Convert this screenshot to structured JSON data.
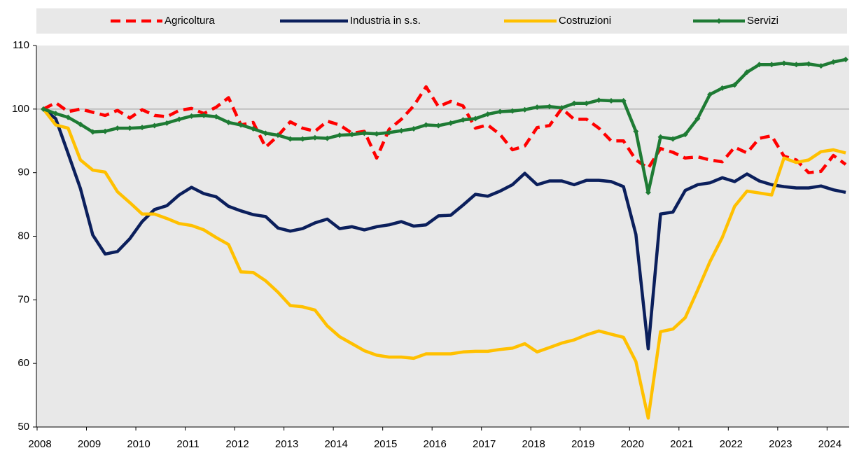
{
  "chart_data": {
    "type": "line",
    "categories": [
      "2008",
      null,
      null,
      null,
      "2009",
      null,
      null,
      null,
      "2010",
      null,
      null,
      null,
      "2011",
      null,
      null,
      null,
      "2012",
      null,
      null,
      null,
      "2013",
      null,
      null,
      null,
      "2014",
      null,
      null,
      null,
      "2015",
      null,
      null,
      null,
      "2016",
      null,
      null,
      null,
      "2017",
      null,
      null,
      null,
      "2018",
      null,
      null,
      null,
      "2019",
      null,
      null,
      null,
      "2020",
      null,
      null,
      null,
      "2021",
      null,
      null,
      null,
      "2022",
      null,
      null,
      null,
      "2023",
      null,
      null,
      null,
      "2024",
      null
    ],
    "ylim": [
      50,
      110
    ],
    "yticks": [
      50,
      60,
      70,
      80,
      90,
      100,
      110
    ],
    "reference_line": 100,
    "legend": "top",
    "series": [
      {
        "name": "Agricoltura",
        "color": "#ff0000",
        "style": "dashed",
        "values": [
          100,
          101,
          99.6,
          100,
          99.5,
          99.0,
          99.8,
          98.6,
          99.9,
          99.0,
          98.8,
          99.8,
          100.1,
          99.3,
          100.3,
          101.8,
          97.5,
          97.9,
          94.0,
          95.8,
          98.0,
          97.0,
          96.5,
          98.1,
          97.5,
          96.2,
          96.5,
          92.3,
          96.8,
          98.4,
          100.5,
          103.5,
          100.4,
          101.2,
          100.5,
          97.0,
          97.5,
          96.0,
          93.6,
          94.2,
          97.1,
          97.4,
          100.1,
          98.4,
          98.4,
          97.0,
          95.0,
          95.0,
          92.0,
          90.7,
          93.8,
          93.2,
          92.3,
          92.5,
          92.0,
          91.7,
          94.0,
          93.1,
          95.4,
          95.8,
          92.6,
          92.0,
          90.0,
          90.2,
          92.7,
          91.3
        ]
      },
      {
        "name": "Industria in s.s.",
        "color": "#0b1f5c",
        "style": "solid",
        "values": [
          100,
          98.5,
          93,
          87.5,
          80.2,
          77.2,
          77.6,
          79.6,
          82.3,
          84.2,
          84.8,
          86.5,
          87.7,
          86.7,
          86.2,
          84.7,
          84.0,
          83.4,
          83.1,
          81.3,
          80.8,
          81.2,
          82.1,
          82.7,
          81.2,
          81.5,
          81.0,
          81.5,
          81.8,
          82.3,
          81.6,
          81.8,
          83.2,
          83.3,
          84.9,
          86.6,
          86.3,
          87.1,
          88.1,
          89.9,
          88.1,
          88.7,
          88.7,
          88.1,
          88.8,
          88.8,
          88.6,
          87.8,
          80.3,
          62.3,
          83.5,
          83.8,
          87.2,
          88.1,
          88.4,
          89.2,
          88.6,
          89.8,
          88.7,
          88.1,
          87.8,
          87.6,
          87.6,
          87.9,
          87.3,
          86.9
        ]
      },
      {
        "name": "Costruzioni",
        "color": "#ffc000",
        "style": "solid",
        "values": [
          100,
          97.5,
          97.0,
          92.0,
          90.4,
          90.1,
          87.0,
          85.3,
          83.5,
          83.5,
          82.8,
          82.0,
          81.7,
          81.0,
          79.8,
          78.7,
          74.4,
          74.3,
          73.0,
          71.2,
          69.1,
          68.9,
          68.4,
          65.9,
          64.2,
          63.1,
          62.0,
          61.3,
          61.0,
          61.0,
          60.8,
          61.5,
          61.5,
          61.5,
          61.8,
          61.9,
          61.9,
          62.2,
          62.4,
          63.1,
          61.8,
          62.5,
          63.2,
          63.7,
          64.5,
          65.1,
          64.6,
          64.1,
          60.3,
          51.4,
          65.0,
          65.4,
          67.2,
          71.5,
          76.0,
          79.8,
          84.7,
          87.1,
          86.8,
          86.5,
          92.3,
          91.6,
          92.0,
          93.3,
          93.6,
          93.1
        ]
      },
      {
        "name": "Servizi",
        "color": "#1e7b34",
        "style": "solid",
        "marker": "diamond",
        "values": [
          100,
          99.3,
          98.7,
          97.6,
          96.4,
          96.5,
          97.0,
          97.0,
          97.1,
          97.4,
          97.8,
          98.4,
          98.9,
          99.0,
          98.8,
          97.9,
          97.5,
          96.9,
          96.2,
          95.9,
          95.3,
          95.3,
          95.5,
          95.4,
          95.9,
          96.0,
          96.2,
          96.1,
          96.3,
          96.6,
          96.9,
          97.5,
          97.4,
          97.8,
          98.3,
          98.5,
          99.2,
          99.6,
          99.7,
          99.9,
          100.3,
          100.4,
          100.2,
          100.9,
          100.9,
          101.4,
          101.3,
          101.3,
          96.5,
          86.9,
          95.6,
          95.3,
          96.0,
          98.5,
          102.3,
          103.3,
          103.8,
          105.8,
          107.0,
          107.0,
          107.2,
          107.0,
          107.1,
          106.8,
          107.4,
          107.8
        ]
      }
    ]
  }
}
